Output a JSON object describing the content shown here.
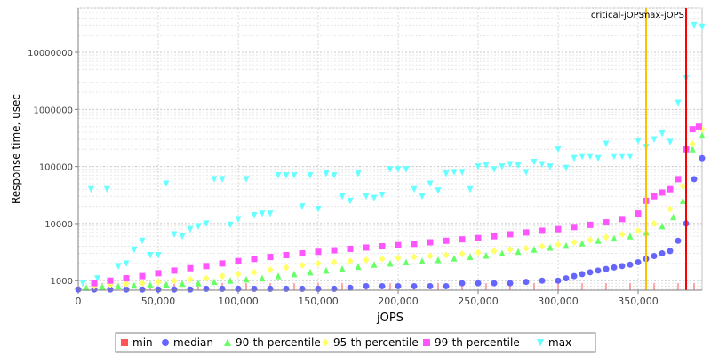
{
  "chart_data": {
    "type": "scatter",
    "xlabel": "jOPS",
    "ylabel": "Response time, usec",
    "xlim": [
      0,
      390000
    ],
    "ylim": [
      680,
      60000000
    ],
    "y_scale": "log",
    "grid": true,
    "legend_placement": "bottom",
    "x_ticks": [
      "0",
      "50,000",
      "100,000",
      "150,000",
      "200,000",
      "250,000",
      "300,000",
      "350,000"
    ],
    "x_tick_values": [
      0,
      50000,
      100000,
      150000,
      200000,
      250000,
      300000,
      350000
    ],
    "y_ticks": [
      "1000",
      "10000",
      "100000",
      "1000000",
      "10000000"
    ],
    "y_tick_values": [
      1000,
      10000,
      100000,
      1000000,
      10000000
    ],
    "vertical_lines": [
      {
        "label": "critical-jOPS",
        "x": 355000,
        "color": "#ffc000"
      },
      {
        "label": "max-jOPS",
        "x": 380000,
        "color": "#ff0000"
      }
    ],
    "series": [
      {
        "name": "min",
        "color": "#ff5555",
        "marker": "square",
        "x": [
          15000,
          30000,
          45000,
          60000,
          75000,
          90000,
          105000,
          120000,
          135000,
          150000,
          165000,
          180000,
          195000,
          210000,
          225000,
          240000,
          255000,
          270000,
          285000,
          300000,
          315000,
          330000,
          345000,
          360000,
          375000,
          385000
        ],
        "y": [
          900,
          900,
          900,
          900,
          900,
          900,
          900,
          900,
          900,
          900,
          900,
          900,
          900,
          900,
          900,
          900,
          900,
          900,
          900,
          900,
          900,
          900,
          900,
          900,
          900,
          900
        ]
      },
      {
        "name": "median",
        "color": "#6666ff",
        "marker": "circle",
        "x": [
          0,
          10000,
          20000,
          30000,
          40000,
          50000,
          60000,
          70000,
          80000,
          90000,
          100000,
          110000,
          120000,
          130000,
          140000,
          150000,
          160000,
          170000,
          180000,
          190000,
          200000,
          210000,
          220000,
          230000,
          240000,
          250000,
          260000,
          270000,
          280000,
          290000,
          300000,
          305000,
          310000,
          315000,
          320000,
          325000,
          330000,
          335000,
          340000,
          345000,
          350000,
          355000,
          360000,
          365000,
          370000,
          375000,
          380000,
          385000,
          390000
        ],
        "y": [
          700,
          700,
          700,
          700,
          700,
          700,
          700,
          700,
          720,
          720,
          720,
          720,
          720,
          720,
          720,
          720,
          720,
          750,
          800,
          800,
          800,
          800,
          800,
          800,
          900,
          900,
          900,
          900,
          950,
          1000,
          1000,
          1100,
          1200,
          1300,
          1400,
          1500,
          1600,
          1700,
          1800,
          1900,
          2100,
          2400,
          2700,
          3000,
          3300,
          5000,
          10000,
          60000,
          140000
        ]
      },
      {
        "name": "90-th percentile",
        "color": "#66ff66",
        "marker": "triangle-up",
        "x": [
          5000,
          15000,
          25000,
          35000,
          45000,
          55000,
          65000,
          75000,
          85000,
          95000,
          105000,
          115000,
          125000,
          135000,
          145000,
          155000,
          165000,
          175000,
          185000,
          195000,
          205000,
          215000,
          225000,
          235000,
          245000,
          255000,
          265000,
          275000,
          285000,
          295000,
          305000,
          315000,
          325000,
          335000,
          345000,
          355000,
          365000,
          372000,
          378000,
          384000,
          390000
        ],
        "y": [
          750,
          780,
          800,
          820,
          840,
          860,
          880,
          900,
          950,
          1000,
          1050,
          1100,
          1200,
          1300,
          1400,
          1500,
          1600,
          1750,
          1900,
          2000,
          2100,
          2200,
          2300,
          2450,
          2600,
          2750,
          3000,
          3200,
          3500,
          3800,
          4100,
          4500,
          5000,
          5500,
          6000,
          7000,
          9000,
          13000,
          25000,
          200000,
          350000
        ]
      },
      {
        "name": "95-th percentile",
        "color": "#ffff66",
        "marker": "diamond",
        "x": [
          10000,
          20000,
          30000,
          40000,
          50000,
          60000,
          70000,
          80000,
          90000,
          100000,
          110000,
          120000,
          130000,
          140000,
          150000,
          160000,
          170000,
          180000,
          190000,
          200000,
          210000,
          220000,
          230000,
          240000,
          250000,
          260000,
          270000,
          280000,
          290000,
          300000,
          310000,
          320000,
          330000,
          340000,
          350000,
          360000,
          370000,
          378000,
          384000,
          390000
        ],
        "y": [
          800,
          850,
          880,
          900,
          950,
          1000,
          1050,
          1100,
          1200,
          1300,
          1400,
          1550,
          1700,
          1850,
          2000,
          2100,
          2200,
          2300,
          2400,
          2500,
          2600,
          2700,
          2800,
          2950,
          3100,
          3300,
          3500,
          3700,
          4000,
          4300,
          4700,
          5200,
          5800,
          6500,
          7500,
          10000,
          18000,
          45000,
          250000,
          450000
        ]
      },
      {
        "name": "99-th percentile",
        "color": "#ff55ff",
        "marker": "square",
        "x": [
          10000,
          20000,
          30000,
          40000,
          50000,
          60000,
          70000,
          80000,
          90000,
          100000,
          110000,
          120000,
          130000,
          140000,
          150000,
          160000,
          170000,
          180000,
          190000,
          200000,
          210000,
          220000,
          230000,
          240000,
          250000,
          260000,
          270000,
          280000,
          290000,
          300000,
          310000,
          320000,
          330000,
          340000,
          350000,
          355000,
          360000,
          365000,
          370000,
          375000,
          380000,
          384000,
          388000
        ],
        "y": [
          900,
          1000,
          1100,
          1200,
          1350,
          1500,
          1650,
          1800,
          2000,
          2200,
          2400,
          2600,
          2800,
          3000,
          3200,
          3400,
          3600,
          3800,
          4000,
          4200,
          4400,
          4700,
          5000,
          5300,
          5600,
          6000,
          6500,
          7000,
          7500,
          8000,
          8700,
          9500,
          10500,
          12000,
          15000,
          25000,
          30000,
          35000,
          40000,
          60000,
          200000,
          450000,
          500000
        ]
      },
      {
        "name": "max",
        "color": "#66ffff",
        "marker": "triangle-down",
        "x": [
          3000,
          8000,
          12000,
          18000,
          25000,
          30000,
          35000,
          40000,
          45000,
          50000,
          55000,
          60000,
          65000,
          70000,
          75000,
          80000,
          85000,
          90000,
          95000,
          100000,
          105000,
          110000,
          115000,
          120000,
          125000,
          130000,
          135000,
          140000,
          145000,
          150000,
          155000,
          160000,
          165000,
          170000,
          175000,
          180000,
          185000,
          190000,
          195000,
          200000,
          205000,
          210000,
          215000,
          220000,
          225000,
          230000,
          235000,
          240000,
          245000,
          250000,
          255000,
          260000,
          265000,
          270000,
          275000,
          280000,
          285000,
          290000,
          295000,
          300000,
          305000,
          310000,
          315000,
          320000,
          325000,
          330000,
          335000,
          340000,
          345000,
          350000,
          355000,
          360000,
          365000,
          370000,
          375000,
          380000,
          385000,
          390000
        ],
        "y": [
          900,
          40000,
          1100,
          40000,
          1800,
          2000,
          3500,
          5000,
          2800,
          2800,
          50000,
          6500,
          6000,
          8000,
          9000,
          10000,
          60000,
          60000,
          9500,
          12000,
          60000,
          14000,
          15000,
          15000,
          70000,
          70000,
          70000,
          20000,
          70000,
          18000,
          75000,
          70000,
          30000,
          25000,
          75000,
          30000,
          28000,
          32000,
          90000,
          90000,
          90000,
          40000,
          30000,
          50000,
          38000,
          75000,
          80000,
          80000,
          40000,
          100000,
          105000,
          90000,
          100000,
          110000,
          105000,
          80000,
          120000,
          110000,
          100000,
          200000,
          95000,
          140000,
          150000,
          150000,
          140000,
          250000,
          150000,
          150000,
          150000,
          280000,
          220000,
          300000,
          380000,
          270000,
          1300000,
          3500000,
          30000000,
          28000000
        ]
      }
    ]
  }
}
